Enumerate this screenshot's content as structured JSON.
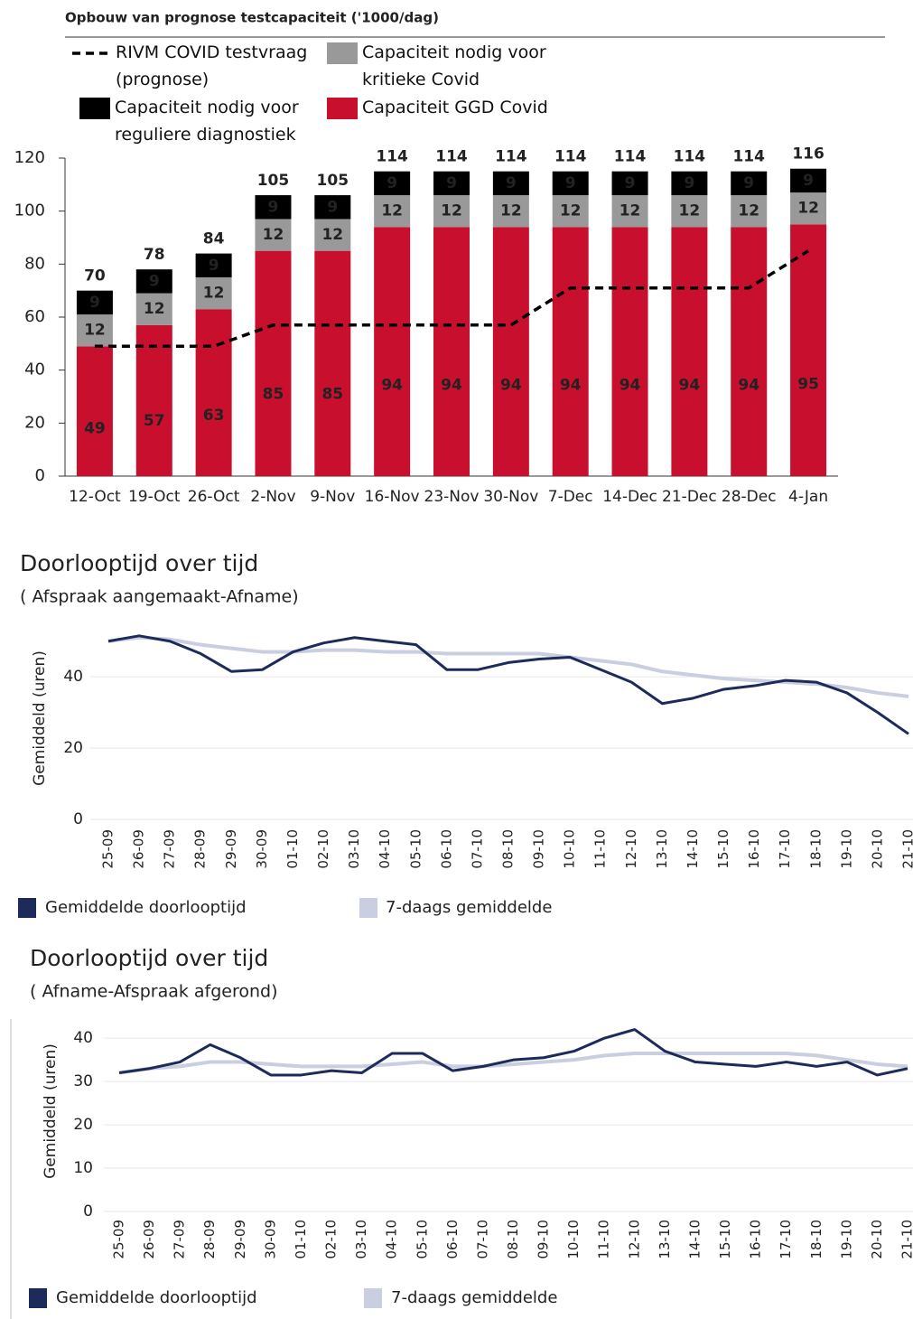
{
  "chart_data": [
    {
      "type": "bar",
      "stacked": true,
      "title": "Opbouw van prognose testcapaciteit ('1000/dag)",
      "categories": [
        "12-Oct",
        "19-Oct",
        "26-Oct",
        "2-Nov",
        "9-Nov",
        "16-Nov",
        "23-Nov",
        "30-Nov",
        "7-Dec",
        "14-Dec",
        "21-Dec",
        "28-Dec",
        "4-Jan"
      ],
      "series": [
        {
          "name": "Capaciteit GGD Covid",
          "color": "#c8102e",
          "values": [
            49,
            57,
            63,
            85,
            85,
            94,
            94,
            94,
            94,
            94,
            94,
            94,
            95
          ]
        },
        {
          "name": "Capaciteit nodig voor kritieke Covid",
          "color": "#999999",
          "values": [
            12,
            12,
            12,
            12,
            12,
            12,
            12,
            12,
            12,
            12,
            12,
            12,
            12
          ]
        },
        {
          "name": "Capaciteit nodig voor reguliere diagnostiek",
          "color": "#000000",
          "values": [
            9,
            9,
            9,
            9,
            9,
            9,
            9,
            9,
            9,
            9,
            9,
            9,
            9
          ]
        },
        {
          "name": "RIVM COVID testvraag (prognose)",
          "color": "#000000",
          "type": "line",
          "line_style": "dashed",
          "values": [
            49,
            49,
            49,
            57,
            57,
            57,
            57,
            57,
            71,
            71,
            71,
            71,
            85
          ]
        }
      ],
      "total_labels": [
        70,
        78,
        84,
        105,
        105,
        114,
        114,
        114,
        114,
        114,
        114,
        114,
        116
      ],
      "ylim": [
        0,
        120
      ],
      "yticks": [
        0,
        20,
        40,
        60,
        80,
        100,
        120
      ],
      "grid": false
    },
    {
      "type": "line",
      "title": "Doorlooptijd over tijd",
      "subtitle": "( Afspraak aangemaakt-Afname)",
      "y_label": "Gemiddeld (uren)",
      "x": [
        "25-09",
        "26-09",
        "27-09",
        "28-09",
        "29-09",
        "30-09",
        "01-10",
        "02-10",
        "03-10",
        "04-10",
        "05-10",
        "06-10",
        "07-10",
        "08-10",
        "09-10",
        "10-10",
        "11-10",
        "12-10",
        "13-10",
        "14-10",
        "15-10",
        "16-10",
        "17-10",
        "18-10",
        "19-10",
        "20-10",
        "21-10"
      ],
      "series": [
        {
          "name": "7-daags gemiddelde",
          "color": "#c9cee0",
          "values": [
            50,
            51,
            50.5,
            49,
            48,
            47,
            47,
            47.5,
            47.5,
            47,
            47,
            46.5,
            46.5,
            46.5,
            46.5,
            45.5,
            44.5,
            43.5,
            41.5,
            40.5,
            39.5,
            39,
            38.5,
            38,
            37,
            35.5,
            34.5
          ]
        },
        {
          "name": "Gemiddelde doorlooptijd",
          "color": "#1c2b5a",
          "values": [
            50,
            51.5,
            50,
            46.5,
            41.5,
            42,
            47,
            49.5,
            51,
            50,
            49,
            42,
            42,
            44,
            45,
            45.5,
            42,
            38.5,
            32.5,
            34,
            36.5,
            37.5,
            39,
            38.5,
            35.5,
            30,
            24
          ]
        }
      ],
      "ylim": [
        0,
        55
      ],
      "yticks": [
        0,
        20,
        40
      ],
      "grid": true
    },
    {
      "type": "line",
      "title": "Doorlooptijd over tijd",
      "subtitle": "( Afname-Afspraak afgerond)",
      "y_label": "Gemiddeld (uren)",
      "x": [
        "25-09",
        "26-09",
        "27-09",
        "28-09",
        "29-09",
        "30-09",
        "01-10",
        "02-10",
        "03-10",
        "04-10",
        "05-10",
        "06-10",
        "07-10",
        "08-10",
        "09-10",
        "10-10",
        "11-10",
        "12-10",
        "13-10",
        "14-10",
        "15-10",
        "16-10",
        "17-10",
        "18-10",
        "19-10",
        "20-10",
        "21-10"
      ],
      "series": [
        {
          "name": "7-daags gemiddelde",
          "color": "#c9cee0",
          "values": [
            32,
            33,
            33.5,
            34.5,
            34.5,
            34,
            33.5,
            33.5,
            33.5,
            34,
            34.5,
            33.5,
            33.5,
            34,
            34.5,
            35,
            36,
            36.5,
            36.5,
            36.5,
            36.5,
            36.5,
            36.5,
            36,
            35,
            34,
            33.5
          ]
        },
        {
          "name": "Gemiddelde doorlooptijd",
          "color": "#1c2b5a",
          "values": [
            32,
            33,
            34.5,
            38.5,
            35.5,
            31.5,
            31.5,
            32.5,
            32,
            36.5,
            36.5,
            32.5,
            33.5,
            35,
            35.5,
            37,
            40,
            42,
            37,
            34.5,
            34,
            33.5,
            34.5,
            33.5,
            34.5,
            31.5,
            33
          ]
        }
      ],
      "ylim": [
        0,
        44
      ],
      "yticks": [
        0,
        10,
        20,
        30,
        40
      ],
      "grid": true
    }
  ]
}
